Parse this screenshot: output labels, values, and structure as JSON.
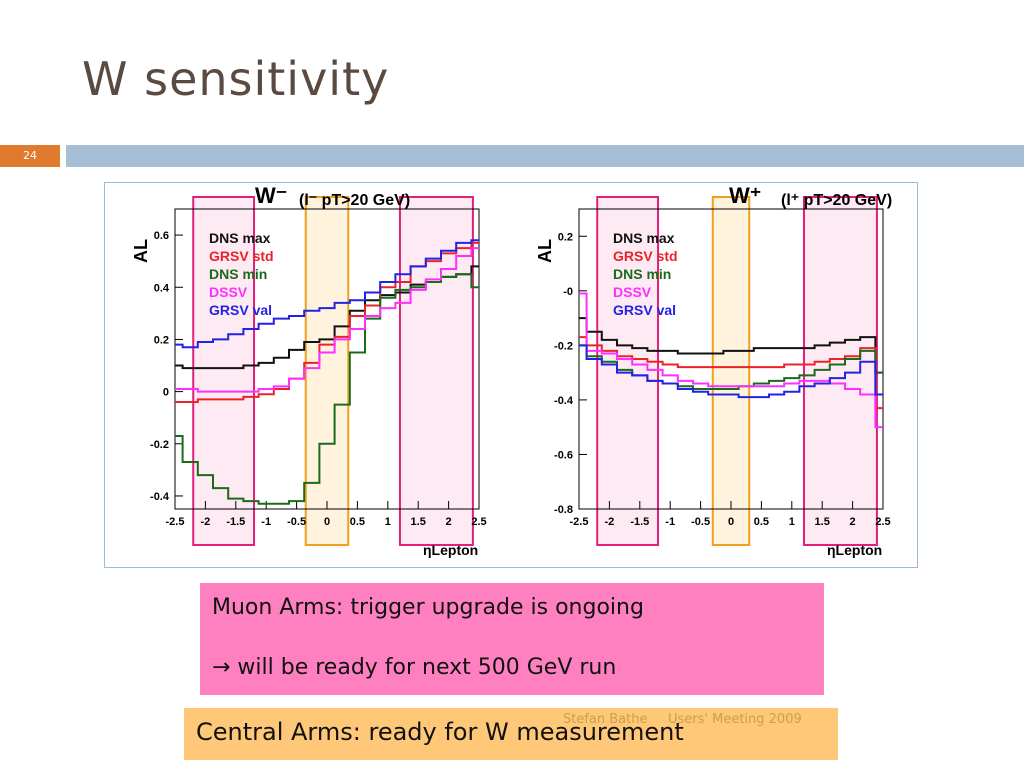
{
  "slide": {
    "title": "W sensitivity",
    "number": "24",
    "footer_author": "Stefan Bathe",
    "footer_event": "Users' Meeting 2009"
  },
  "boxes": {
    "muon_line1": "Muon Arms: trigger upgrade is ongoing",
    "muon_line2": "→ will be ready for next 500 GeV run",
    "central": "Central Arms: ready for W measurement"
  },
  "colors": {
    "dns_max": "#111111",
    "grsv_std": "#e8242a",
    "dns_min": "#1a6b1a",
    "dssv": "#ff2fff",
    "grsv_val": "#2323e6",
    "slide_number_bg": "#e07a2e",
    "band": "#a7bfd4",
    "muon_box": "#ff80c0",
    "central_box": "#ffc878"
  },
  "chart_data": [
    {
      "type": "line",
      "title": "W⁻",
      "annotation": "(l⁻  pT>20 GeV)",
      "xlabel": "ηLepton",
      "ylabel": "AL",
      "xlim": [
        -2.5,
        2.5
      ],
      "ylim": [
        -0.45,
        0.7
      ],
      "x_ticks": [
        "-2.5",
        "-2",
        "-1.5",
        "-1",
        "-0.5",
        "0",
        "0.5",
        "1",
        "1.5",
        "2",
        "2.5"
      ],
      "y_ticks": [
        "-0.4",
        "-0.2",
        "0",
        "0.2",
        "0.4",
        "0.6"
      ],
      "legend_position": "top-left",
      "highlights": [
        {
          "range": [
            -2.2,
            -1.2
          ],
          "color": "pink"
        },
        {
          "range": [
            -0.35,
            0.35
          ],
          "color": "orange"
        },
        {
          "range": [
            1.2,
            2.4
          ],
          "color": "pink"
        }
      ],
      "x": [
        -2.5,
        -2.25,
        -2.0,
        -1.75,
        -1.5,
        -1.25,
        -1.0,
        -0.75,
        -0.5,
        -0.25,
        0.0,
        0.25,
        0.5,
        0.75,
        1.0,
        1.25,
        1.5,
        1.75,
        2.0,
        2.25,
        2.5
      ],
      "series": [
        {
          "name": "DNS max",
          "values": [
            0.1,
            0.09,
            0.09,
            0.09,
            0.09,
            0.1,
            0.11,
            0.13,
            0.16,
            0.19,
            0.2,
            0.25,
            0.31,
            0.35,
            0.37,
            0.38,
            0.41,
            0.42,
            0.44,
            0.45,
            0.48
          ]
        },
        {
          "name": "GRSV std",
          "values": [
            -0.04,
            -0.04,
            -0.03,
            -0.03,
            -0.03,
            -0.02,
            -0.01,
            0.01,
            0.05,
            0.11,
            0.18,
            0.21,
            0.29,
            0.33,
            0.4,
            0.42,
            0.48,
            0.5,
            0.53,
            0.55,
            0.57
          ]
        },
        {
          "name": "DNS min",
          "values": [
            -0.17,
            -0.27,
            -0.32,
            -0.37,
            -0.41,
            -0.42,
            -0.43,
            -0.43,
            -0.42,
            -0.35,
            -0.2,
            -0.05,
            0.15,
            0.28,
            0.36,
            0.39,
            0.4,
            0.42,
            0.44,
            0.45,
            0.4
          ]
        },
        {
          "name": "DSSV",
          "values": [
            0.01,
            0.01,
            0.0,
            0.0,
            0.0,
            0.0,
            0.01,
            0.02,
            0.05,
            0.09,
            0.15,
            0.2,
            0.24,
            0.29,
            0.32,
            0.34,
            0.39,
            0.43,
            0.47,
            0.52,
            0.55
          ]
        },
        {
          "name": "GRSV val",
          "values": [
            0.18,
            0.17,
            0.19,
            0.2,
            0.22,
            0.24,
            0.26,
            0.28,
            0.29,
            0.31,
            0.32,
            0.34,
            0.35,
            0.38,
            0.42,
            0.45,
            0.48,
            0.51,
            0.54,
            0.57,
            0.58
          ]
        }
      ]
    },
    {
      "type": "line",
      "title": "W⁺",
      "annotation": "(l⁺  pT>20 GeV)",
      "xlabel": "ηLepton",
      "ylabel": "AL",
      "xlim": [
        -2.5,
        2.5
      ],
      "ylim": [
        -0.8,
        0.3
      ],
      "x_ticks": [
        "-2.5",
        "-2",
        "-1.5",
        "-1",
        "-0.5",
        "0",
        "0.5",
        "1",
        "1.5",
        "2",
        "2.5"
      ],
      "y_ticks": [
        "-0.8",
        "-0.6",
        "-0.4",
        "-0.2",
        "-0",
        "0.2"
      ],
      "legend_position": "top-left",
      "highlights": [
        {
          "range": [
            -2.2,
            -1.2
          ],
          "color": "pink"
        },
        {
          "range": [
            -0.3,
            0.3
          ],
          "color": "orange"
        },
        {
          "range": [
            1.2,
            2.4
          ],
          "color": "pink"
        }
      ],
      "x": [
        -2.5,
        -2.25,
        -2.0,
        -1.75,
        -1.5,
        -1.25,
        -1.0,
        -0.75,
        -0.5,
        -0.25,
        0.0,
        0.25,
        0.5,
        0.75,
        1.0,
        1.25,
        1.5,
        1.75,
        2.0,
        2.25,
        2.5
      ],
      "series": [
        {
          "name": "DNS max",
          "values": [
            -0.1,
            -0.15,
            -0.18,
            -0.2,
            -0.21,
            -0.22,
            -0.22,
            -0.23,
            -0.23,
            -0.23,
            -0.22,
            -0.22,
            -0.21,
            -0.21,
            -0.21,
            -0.21,
            -0.2,
            -0.19,
            -0.18,
            -0.17,
            -0.3
          ]
        },
        {
          "name": "GRSV std",
          "values": [
            -0.17,
            -0.2,
            -0.22,
            -0.24,
            -0.25,
            -0.26,
            -0.27,
            -0.28,
            -0.28,
            -0.28,
            -0.28,
            -0.28,
            -0.28,
            -0.28,
            -0.27,
            -0.27,
            -0.26,
            -0.25,
            -0.24,
            -0.21,
            -0.43
          ]
        },
        {
          "name": "DNS min",
          "values": [
            -0.2,
            -0.24,
            -0.26,
            -0.29,
            -0.31,
            -0.33,
            -0.34,
            -0.35,
            -0.36,
            -0.36,
            -0.36,
            -0.35,
            -0.34,
            -0.33,
            -0.32,
            -0.31,
            -0.29,
            -0.27,
            -0.25,
            -0.22,
            -0.3
          ]
        },
        {
          "name": "DSSV",
          "values": [
            -0.01,
            -0.22,
            -0.23,
            -0.25,
            -0.27,
            -0.29,
            -0.31,
            -0.33,
            -0.34,
            -0.35,
            -0.35,
            -0.35,
            -0.35,
            -0.35,
            -0.34,
            -0.33,
            -0.33,
            -0.34,
            -0.36,
            -0.38,
            -0.5
          ]
        },
        {
          "name": "GRSV val",
          "values": [
            -0.2,
            -0.25,
            -0.27,
            -0.3,
            -0.31,
            -0.33,
            -0.34,
            -0.36,
            -0.37,
            -0.38,
            -0.38,
            -0.39,
            -0.39,
            -0.38,
            -0.37,
            -0.35,
            -0.34,
            -0.32,
            -0.3,
            -0.26,
            -0.38
          ]
        }
      ]
    }
  ]
}
